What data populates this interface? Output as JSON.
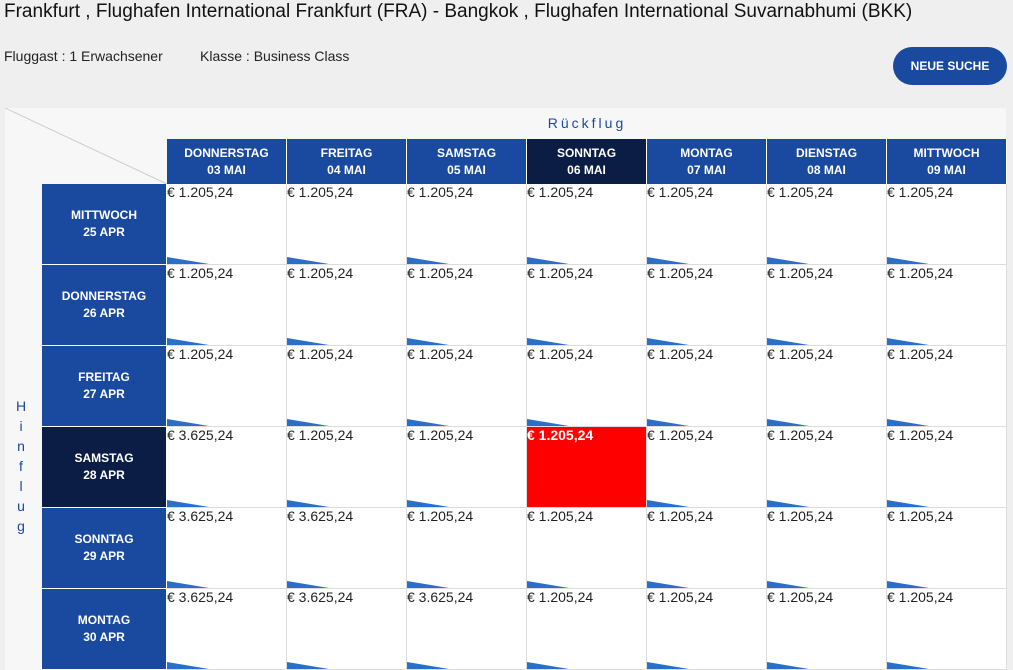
{
  "header": {
    "title": "Frankfurt , Flughafen International Frankfurt (FRA) - Bangkok , Flughafen International Suvarnabhumi (BKK)",
    "passenger": "Fluggast : 1 Erwachsener",
    "travel_class": "Klasse : Business Class",
    "button": "NEUE SUCHE"
  },
  "matrix": {
    "return_label": "Rückflug",
    "outbound_label": "Hinflug",
    "columns": [
      {
        "day": "DONNERSTAG",
        "date": "03 MAI"
      },
      {
        "day": "FREITAG",
        "date": "04 MAI"
      },
      {
        "day": "SAMSTAG",
        "date": "05 MAI"
      },
      {
        "day": "SONNTAG",
        "date": "06 MAI"
      },
      {
        "day": "MONTAG",
        "date": "07 MAI"
      },
      {
        "day": "DIENSTAG",
        "date": "08 MAI"
      },
      {
        "day": "MITTWOCH",
        "date": "09 MAI"
      }
    ],
    "rows": [
      {
        "day": "MITTWOCH",
        "date": "25 APR",
        "prices": [
          "€ 1.205,24",
          "€ 1.205,24",
          "€ 1.205,24",
          "€ 1.205,24",
          "€ 1.205,24",
          "€ 1.205,24",
          "€ 1.205,24"
        ]
      },
      {
        "day": "DONNERSTAG",
        "date": "26 APR",
        "prices": [
          "€ 1.205,24",
          "€ 1.205,24",
          "€ 1.205,24",
          "€ 1.205,24",
          "€ 1.205,24",
          "€ 1.205,24",
          "€ 1.205,24"
        ]
      },
      {
        "day": "FREITAG",
        "date": "27 APR",
        "prices": [
          "€ 1.205,24",
          "€ 1.205,24",
          "€ 1.205,24",
          "€ 1.205,24",
          "€ 1.205,24",
          "€ 1.205,24",
          "€ 1.205,24"
        ]
      },
      {
        "day": "SAMSTAG",
        "date": "28 APR",
        "prices": [
          "€ 3.625,24",
          "€ 1.205,24",
          "€ 1.205,24",
          "€ 1.205,24",
          "€ 1.205,24",
          "€ 1.205,24",
          "€ 1.205,24"
        ]
      },
      {
        "day": "SONNTAG",
        "date": "29 APR",
        "prices": [
          "€ 3.625,24",
          "€ 3.625,24",
          "€ 1.205,24",
          "€ 1.205,24",
          "€ 1.205,24",
          "€ 1.205,24",
          "€ 1.205,24"
        ]
      },
      {
        "day": "MONTAG",
        "date": "30 APR",
        "prices": [
          "€ 3.625,24",
          "€ 3.625,24",
          "€ 3.625,24",
          "€ 1.205,24",
          "€ 1.205,24",
          "€ 1.205,24",
          "€ 1.205,24"
        ]
      }
    ]
  }
}
